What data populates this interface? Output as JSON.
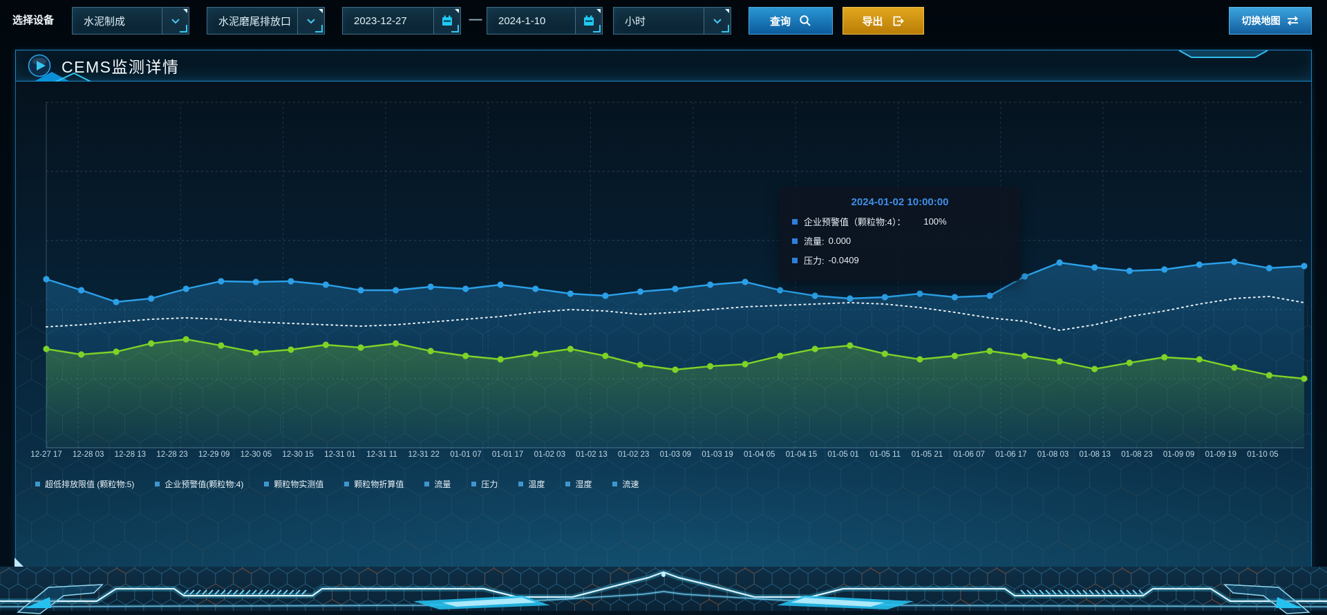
{
  "toolbar": {
    "device_label": "选择设备",
    "device_type": {
      "value": "水泥制成"
    },
    "device_point": {
      "value": "水泥磨尾排放口"
    },
    "date_start": {
      "value": "2023-12-27"
    },
    "date_separator": "—",
    "date_end": {
      "value": "2024-1-10"
    },
    "interval": {
      "value": "小时"
    },
    "query_button": "查询",
    "export_button": "导出",
    "switch_map_button": "切换地图"
  },
  "panel": {
    "title": "CEMS监测详情"
  },
  "tooltip": {
    "title": "2024-01-02 10:00:00",
    "rows": [
      {
        "label": "企业预警值（颗粒物:4）：",
        "value": "100%"
      },
      {
        "label": "流量:",
        "value": "0.000"
      },
      {
        "label": "压力:",
        "value": "-0.0409"
      }
    ]
  },
  "colors": {
    "accent_cyan": "#35c6f0",
    "query_blue": "#1b7fc0",
    "export_orange": "#d9971a",
    "tooltip_title_blue": "#3f8fe8",
    "tooltip_marker": "#2d7fd9",
    "legend_marker": "#3f96d0",
    "series_blue": "#2ba0e8",
    "series_white": "#e6eef3",
    "series_green": "#7ed327"
  },
  "chart_data": {
    "type": "line",
    "x_labels": [
      "12-27 17",
      "12-28 03",
      "12-28 13",
      "12-28 23",
      "12-29 09",
      "12-30 05",
      "12-30 15",
      "12-31 01",
      "12-31 11",
      "12-31 22",
      "01-01 07",
      "01-01 17",
      "01-02 03",
      "01-02 13",
      "01-02 23",
      "01-03 09",
      "01-03 19",
      "01-04 05",
      "01-04 15",
      "01-05 01",
      "01-05 11",
      "01-05 21",
      "01-06 07",
      "01-06 17",
      "01-08 03",
      "01-08 13",
      "01-08 23",
      "01-09 09",
      "01-09 19",
      "01-10 05"
    ],
    "ylim": [
      0,
      100
    ],
    "y_axis_visible": false,
    "grid": true,
    "legend_position": "bottom",
    "value_scale_note": "y-axis labels hidden in source UI; values estimated as percent of plot height",
    "legend": [
      "超低排放限值 (颗粒物:5)",
      "企业预警值(颗粒物:4)",
      "颗粒物实测值",
      "颗粒物折算值",
      "流量",
      "压力",
      "温度",
      "湿度",
      "流速"
    ],
    "series": [
      {
        "name": "series-blue",
        "color": "#2ba0e8",
        "style": "solid",
        "markers": true,
        "area": true,
        "values": [
          48.8,
          45.6,
          42.2,
          43.2,
          46.0,
          48.2,
          48.0,
          48.2,
          47.2,
          45.6,
          45.6,
          46.6,
          46.0,
          47.2,
          46.0,
          44.6,
          44.0,
          45.2,
          46.0,
          47.2,
          48.0,
          45.6,
          44.0,
          43.2,
          43.6,
          44.6,
          43.6,
          44.0,
          49.6,
          53.6,
          52.2,
          51.2,
          51.6,
          53.0,
          53.8,
          52.0,
          52.6
        ]
      },
      {
        "name": "series-white-dotted",
        "color": "#e6eef3",
        "style": "dotted",
        "markers": false,
        "area": false,
        "values": [
          35.0,
          35.6,
          36.4,
          37.2,
          37.6,
          37.2,
          36.4,
          36.0,
          35.6,
          35.2,
          35.6,
          36.4,
          37.2,
          38.0,
          39.2,
          40.0,
          39.6,
          38.6,
          39.2,
          40.0,
          40.8,
          41.2,
          41.6,
          42.0,
          41.6,
          40.6,
          39.2,
          37.6,
          36.6,
          34.0,
          35.6,
          38.0,
          39.6,
          41.6,
          43.2,
          43.8,
          42.0
        ]
      },
      {
        "name": "series-green",
        "color": "#7ed327",
        "style": "solid",
        "markers": true,
        "area": true,
        "values": [
          28.6,
          27.0,
          27.8,
          30.2,
          31.4,
          29.6,
          27.6,
          28.4,
          29.8,
          29.0,
          30.2,
          28.0,
          26.6,
          25.6,
          27.2,
          28.6,
          26.6,
          24.0,
          22.6,
          23.6,
          24.2,
          26.6,
          28.6,
          29.6,
          27.2,
          25.6,
          26.6,
          28.0,
          26.6,
          25.0,
          22.8,
          24.6,
          26.2,
          25.6,
          23.2,
          21.0,
          20.0
        ]
      }
    ]
  }
}
